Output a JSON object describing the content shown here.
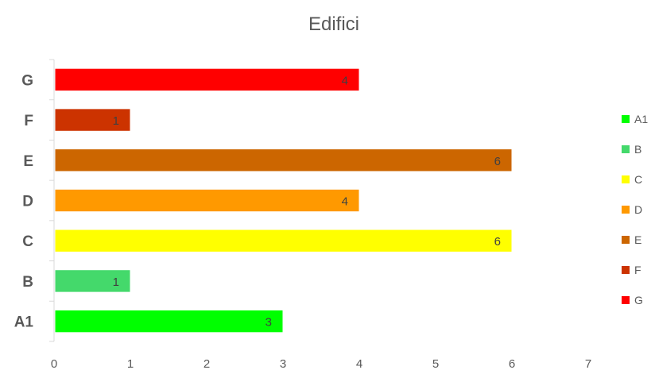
{
  "chart_data": {
    "type": "bar",
    "orientation": "horizontal",
    "title": "Edifici",
    "categories": [
      "A1",
      "B",
      "C",
      "D",
      "E",
      "F",
      "G"
    ],
    "values": [
      3,
      1,
      6,
      4,
      6,
      1,
      4
    ],
    "colors": [
      "#00ff00",
      "#44d96b",
      "#ffff00",
      "#ff9900",
      "#cc6600",
      "#cc3300",
      "#ff0000"
    ],
    "xlim": [
      0,
      7
    ],
    "xticks": [
      0,
      1,
      2,
      3,
      4,
      5,
      6,
      7
    ],
    "xlabel": "",
    "ylabel": "",
    "grid": false,
    "data_labels": true,
    "legend": {
      "position": "right",
      "entries": [
        "A1",
        "B",
        "C",
        "D",
        "E",
        "F",
        "G"
      ]
    }
  }
}
